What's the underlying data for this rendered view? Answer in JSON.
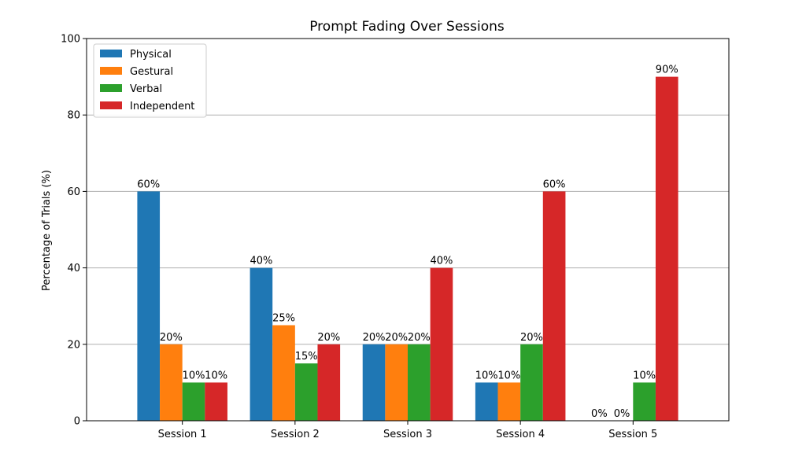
{
  "chart_data": {
    "type": "bar",
    "title": "Prompt Fading Over Sessions",
    "xlabel": "",
    "ylabel": "Percentage of Trials (%)",
    "ylim": [
      0,
      100
    ],
    "yticks": [
      0,
      20,
      40,
      60,
      80,
      100
    ],
    "grid": "y",
    "legend_position": "top-left",
    "categories": [
      "Session 1",
      "Session 2",
      "Session 3",
      "Session 4",
      "Session 5"
    ],
    "series": [
      {
        "name": "Physical",
        "color": "#1f77b4",
        "values": [
          60,
          40,
          20,
          10,
          0
        ],
        "labels": [
          "60%",
          "40%",
          "20%",
          "10%",
          "0%"
        ]
      },
      {
        "name": "Gestural",
        "color": "#ff7f0e",
        "values": [
          20,
          25,
          20,
          10,
          0
        ],
        "labels": [
          "20%",
          "25%",
          "20%",
          "10%",
          "0%"
        ]
      },
      {
        "name": "Verbal",
        "color": "#2ca02c",
        "values": [
          10,
          15,
          20,
          20,
          10
        ],
        "labels": [
          "10%",
          "15%",
          "20%",
          "20%",
          "10%"
        ]
      },
      {
        "name": "Independent",
        "color": "#d62728",
        "values": [
          10,
          20,
          40,
          60,
          90
        ],
        "labels": [
          "10%",
          "20%",
          "40%",
          "60%",
          "90%"
        ]
      }
    ]
  }
}
